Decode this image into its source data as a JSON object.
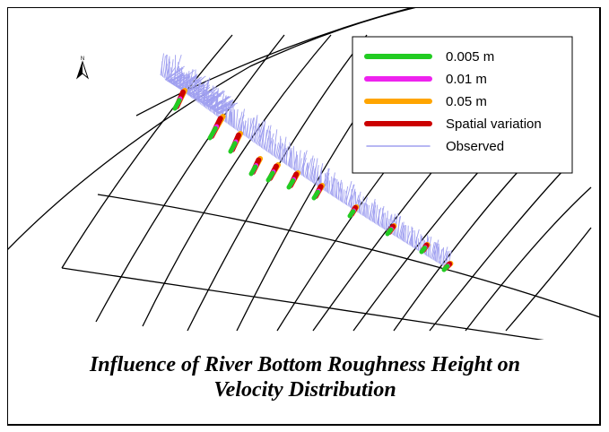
{
  "north_arrow": {
    "label": "N"
  },
  "legend": {
    "items": [
      {
        "label": "0.005 m",
        "color": "#22cc22",
        "style": "thick"
      },
      {
        "label": "0.01 m",
        "color": "#ee22ee",
        "style": "thick"
      },
      {
        "label": "0.05 m",
        "color": "#ffa500",
        "style": "thick"
      },
      {
        "label": "Spatial variation",
        "color": "#cc0000",
        "style": "thick"
      },
      {
        "label": "Observed",
        "color": "#9f9fef",
        "style": "thin"
      }
    ]
  },
  "caption": {
    "line1": "Influence of River Bottom Roughness Height on",
    "line2": "Velocity Distribution"
  }
}
